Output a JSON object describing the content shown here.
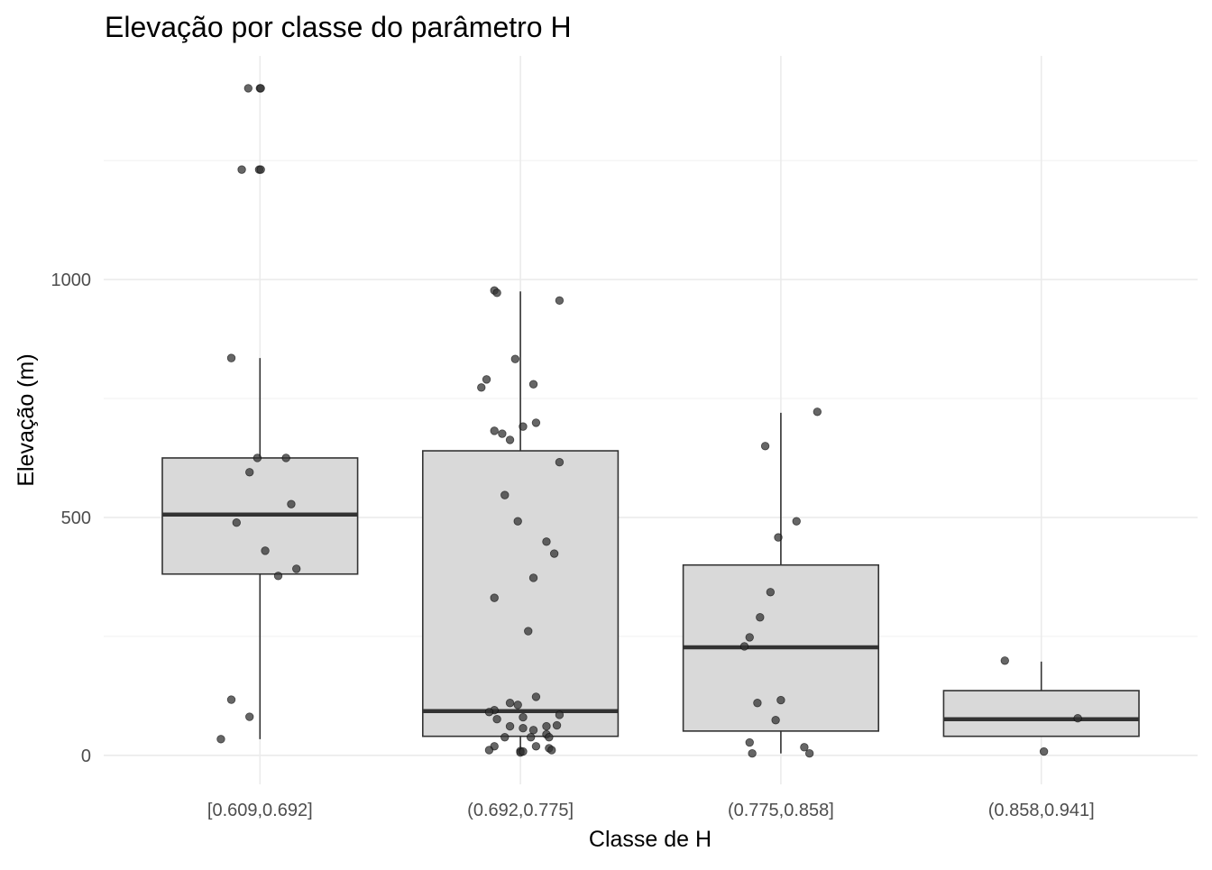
{
  "chart_data": {
    "type": "boxplot",
    "title": "Elevação por classe do parâmetro H",
    "xlabel": "Classe de H",
    "ylabel": "Elevação (m)",
    "categories": [
      "[0.609,0.692]",
      "(0.692,0.775]",
      "(0.775,0.858]",
      "(0.858,0.941]"
    ],
    "ylim": [
      -61,
      1470
    ],
    "xlim": [
      0.4,
      4.6
    ],
    "y_ticks": [
      0,
      500,
      1000
    ],
    "y_tick_labels": [
      "0",
      "500",
      "1000"
    ],
    "y_minor_ticks": [
      250,
      750,
      1250
    ],
    "grid": true,
    "colors": {
      "box_fill": "#d9d9d9",
      "box_line": "#333333",
      "point": "#333333",
      "grid": "#ebebeb"
    },
    "boxes": [
      {
        "category": "[0.609,0.692]",
        "whisker_low": 34,
        "q1": 381,
        "median": 506,
        "q3": 625,
        "whisker_high": 835
      },
      {
        "category": "(0.692,0.775]",
        "whisker_low": 6,
        "q1": 40,
        "median": 93,
        "q3": 640,
        "whisker_high": 975
      },
      {
        "category": "(0.775,0.858]",
        "whisker_low": 4,
        "q1": 51,
        "median": 227,
        "q3": 400,
        "whisker_high": 720
      },
      {
        "category": "(0.858,0.941]",
        "whisker_low": 40,
        "q1": 40,
        "median": 76,
        "q3": 136,
        "whisker_high": 197
      }
    ],
    "points": [
      [
        [
          -0.045,
          1402
        ],
        [
          0,
          1402
        ],
        [
          0.003,
          1402
        ],
        [
          -0.07,
          1231
        ],
        [
          -0.003,
          1231
        ],
        [
          0.003,
          1231
        ],
        [
          -0.11,
          835
        ],
        [
          -0.01,
          625
        ],
        [
          0.1,
          625
        ],
        [
          -0.04,
          595
        ],
        [
          0.12,
          528
        ],
        [
          -0.09,
          489
        ],
        [
          0.02,
          430
        ],
        [
          0.14,
          392
        ],
        [
          0.07,
          377
        ],
        [
          -0.11,
          117
        ],
        [
          -0.04,
          81
        ],
        [
          -0.15,
          34
        ]
      ],
      [
        [
          -0.1,
          977
        ],
        [
          -0.09,
          972
        ],
        [
          0.15,
          956
        ],
        [
          -0.02,
          833
        ],
        [
          -0.13,
          790
        ],
        [
          -0.15,
          773
        ],
        [
          0.05,
          780
        ],
        [
          0.06,
          699
        ],
        [
          0.01,
          691
        ],
        [
          -0.1,
          682
        ],
        [
          -0.07,
          676
        ],
        [
          -0.04,
          663
        ],
        [
          0.15,
          616
        ],
        [
          -0.06,
          547
        ],
        [
          -0.01,
          492
        ],
        [
          0.1,
          449
        ],
        [
          0.13,
          424
        ],
        [
          0.05,
          373
        ],
        [
          -0.1,
          331
        ],
        [
          0.03,
          261
        ],
        [
          0.06,
          123
        ],
        [
          -0.04,
          110
        ],
        [
          -0.01,
          106
        ],
        [
          -0.1,
          95
        ],
        [
          -0.12,
          91
        ],
        [
          0.15,
          85
        ],
        [
          -0.09,
          76
        ],
        [
          0.01,
          80
        ],
        [
          -0.04,
          61
        ],
        [
          0.1,
          61
        ],
        [
          0.01,
          57
        ],
        [
          0.05,
          53
        ],
        [
          0.14,
          63
        ],
        [
          -0.06,
          38
        ],
        [
          0.04,
          38
        ],
        [
          0.1,
          44
        ],
        [
          0.11,
          38
        ],
        [
          -0.1,
          19
        ],
        [
          0.06,
          19
        ],
        [
          -0.12,
          11
        ],
        [
          0,
          9
        ],
        [
          0,
          6
        ],
        [
          0.01,
          8
        ],
        [
          0.11,
          15
        ],
        [
          0.12,
          11
        ]
      ],
      [
        [
          0.14,
          722
        ],
        [
          -0.06,
          650
        ],
        [
          0.06,
          492
        ],
        [
          -0.01,
          458
        ],
        [
          -0.04,
          343
        ],
        [
          -0.08,
          290
        ],
        [
          -0.12,
          248
        ],
        [
          -0.14,
          229
        ],
        [
          -0.09,
          110
        ],
        [
          0,
          116
        ],
        [
          -0.02,
          74
        ],
        [
          -0.12,
          27
        ],
        [
          0.09,
          17
        ],
        [
          -0.11,
          4
        ],
        [
          0.11,
          4
        ]
      ],
      [
        [
          -0.14,
          199
        ],
        [
          0.14,
          78
        ],
        [
          0.01,
          8
        ]
      ]
    ]
  }
}
